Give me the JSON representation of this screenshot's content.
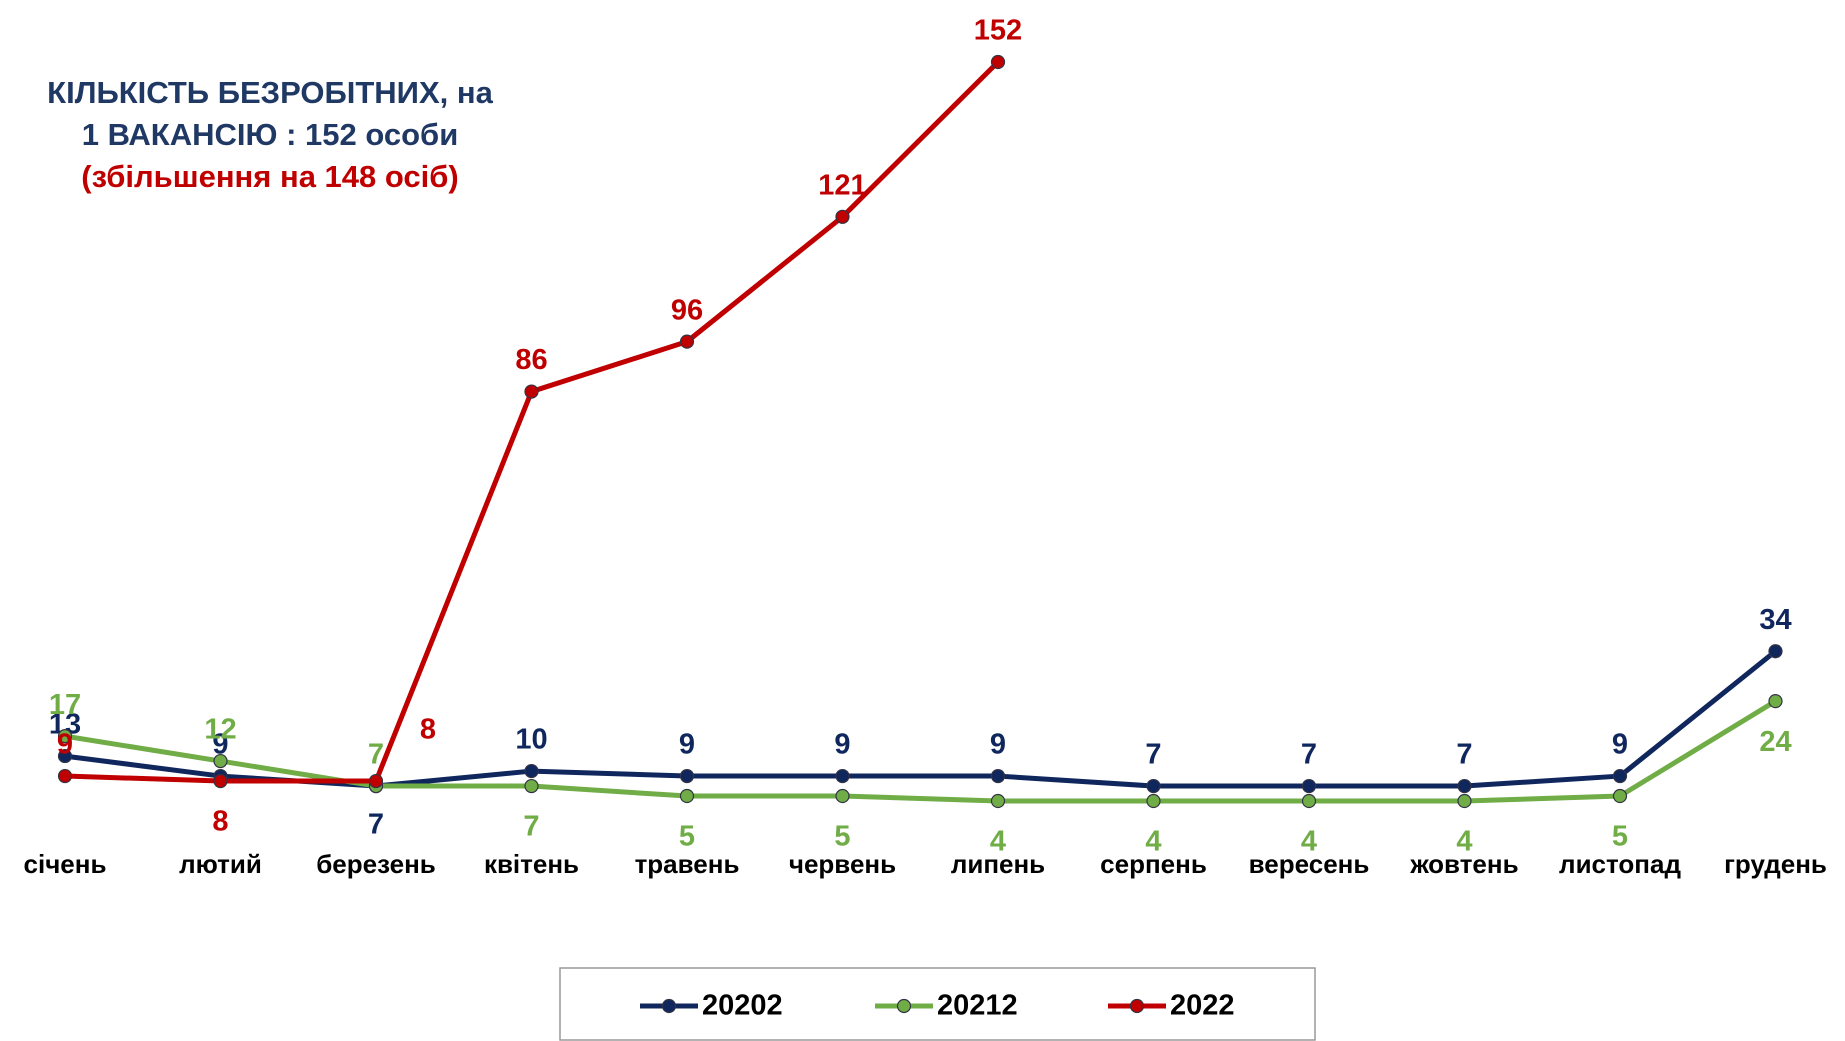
{
  "chart_data": {
    "type": "line",
    "title": "КІЛЬКІСТЬ  БЕЗРОБІТНИХ, на  1  ВАКАНСІЮ : 152 особи",
    "annotation": "(збільшення  на 148 осіб)",
    "categories": [
      "січень",
      "лютий",
      "березень",
      "квітень",
      "травень",
      "червень",
      "липень",
      "серпень",
      "вересень",
      "жовтень",
      "листопад",
      "грудень"
    ],
    "series": [
      {
        "name": "20202",
        "color": "#10275e",
        "values": [
          13,
          9,
          7,
          10,
          9,
          9,
          9,
          7,
          7,
          7,
          9,
          34
        ]
      },
      {
        "name": "20212",
        "color": "#70ad47",
        "values": [
          17,
          12,
          7,
          7,
          5,
          5,
          4,
          4,
          4,
          4,
          5,
          24
        ]
      },
      {
        "name": "2022",
        "color": "#c00000",
        "values": [
          9,
          8,
          8,
          86,
          96,
          121,
          152,
          null,
          null,
          null,
          null,
          null
        ]
      }
    ],
    "legend": "bottom"
  }
}
